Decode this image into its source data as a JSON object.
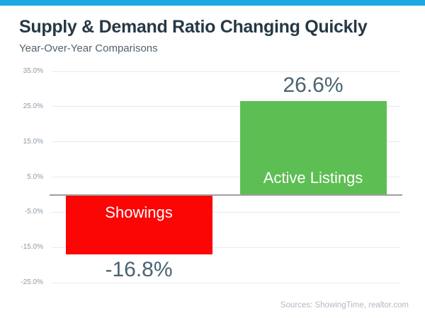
{
  "header": {
    "title": "Supply & Demand Ratio Changing Quickly",
    "subtitle": "Year-Over-Year Comparisons"
  },
  "footer": {
    "sources": "Sources: ShowingTime, realtor.com"
  },
  "colors": {
    "accent_strip": "#1ea9e5",
    "title": "#263845",
    "subtitle": "#53626e",
    "tick_label": "#8b99a6",
    "gridline": "#e7e9eb",
    "zero_line": "#9e9e9e",
    "value_label": "#4a6372",
    "sources": "#b2bac4"
  },
  "chart_data": {
    "type": "bar",
    "title": "Supply & Demand Ratio Changing Quickly",
    "subtitle": "Year-Over-Year Comparisons",
    "categories": [
      "Showings",
      "Active Listings"
    ],
    "bars": [
      {
        "label": "Showings",
        "value": -16.8,
        "value_label": "-16.8%",
        "color": "#fb0505",
        "label_color": "#ffffff"
      },
      {
        "label": "Active Listings",
        "value": 26.6,
        "value_label": "26.6%",
        "color": "#5dbe53",
        "label_color": "#ffffff"
      }
    ],
    "yticks": [
      {
        "value": 35,
        "label": "35.0%"
      },
      {
        "value": 25,
        "label": "25.0%"
      },
      {
        "value": 15,
        "label": "15.0%"
      },
      {
        "value": 5,
        "label": "5.0%"
      },
      {
        "value": -5,
        "label": "-5.0%"
      },
      {
        "value": -15,
        "label": "-15.0%"
      },
      {
        "value": -25,
        "label": "-25.0%"
      }
    ],
    "ylim": [
      -25,
      35
    ],
    "grid": true,
    "legend": false,
    "xlabel": "",
    "ylabel": "",
    "sources": "Sources: ShowingTime, realtor.com"
  }
}
